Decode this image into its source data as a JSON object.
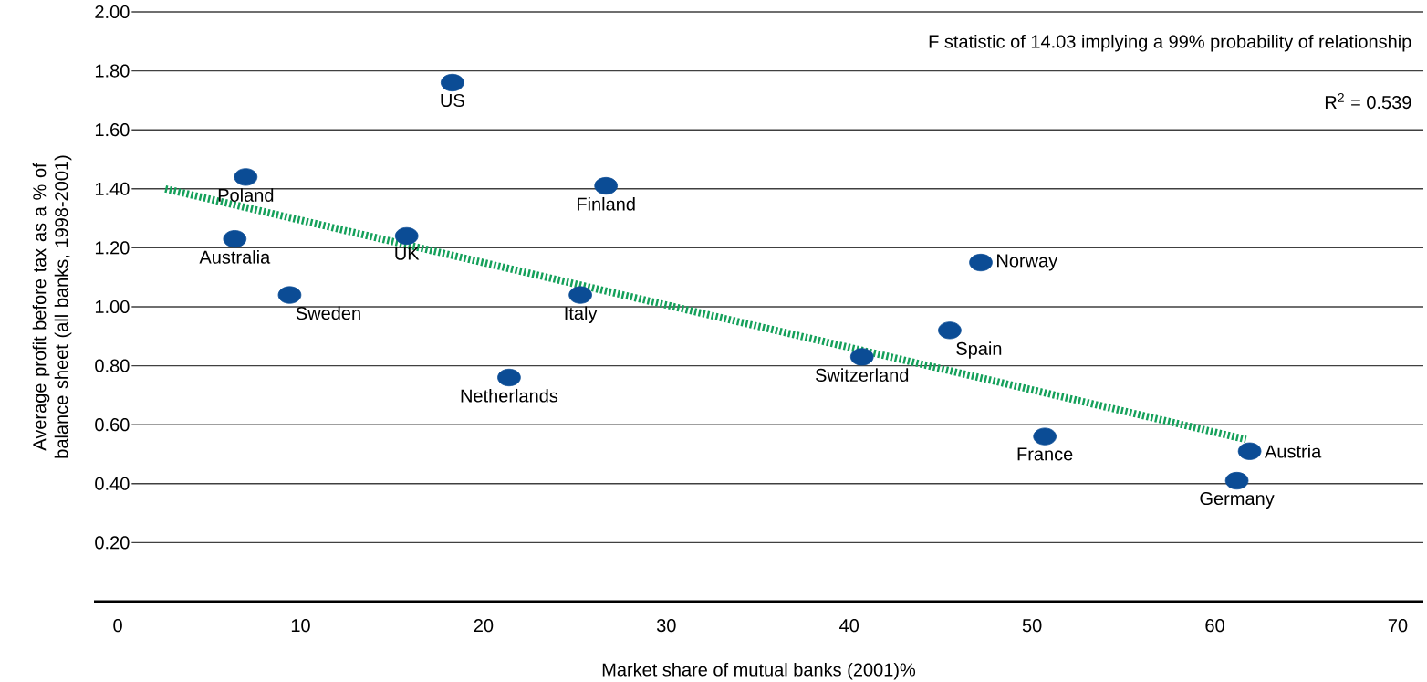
{
  "chart_data": {
    "type": "scatter",
    "xlabel": "Market share of mutual banks (2001)%",
    "ylabel": "Average profit before tax as a % of balance sheet (all banks, 1998-2001)",
    "xlim": [
      -1.3,
      71.4
    ],
    "ylim": [
      0,
      2.0
    ],
    "xticks": [
      0,
      10,
      20,
      30,
      40,
      50,
      60,
      70
    ],
    "yticks": [
      {
        "value": 0.2,
        "label": "0.20"
      },
      {
        "value": 0.4,
        "label": "0.40"
      },
      {
        "value": 0.6,
        "label": "0.60"
      },
      {
        "value": 0.8,
        "label": "0.80"
      },
      {
        "value": 1.0,
        "label": "1.00"
      },
      {
        "value": 1.2,
        "label": "1.20"
      },
      {
        "value": 1.4,
        "label": "1.40"
      },
      {
        "value": 1.6,
        "label": "1.60"
      },
      {
        "value": 1.8,
        "label": "1.80"
      },
      {
        "value": 2.0,
        "label": "2.00"
      }
    ],
    "grid": "y",
    "series": [
      {
        "color": "#0b4c95",
        "marker": "circle",
        "x": [
          18.3,
          7.0,
          26.7,
          6.4,
          15.8,
          47.2,
          9.4,
          25.3,
          45.5,
          40.7,
          21.4,
          50.7,
          61.9,
          61.2
        ],
        "values": [
          1.76,
          1.44,
          1.41,
          1.23,
          1.24,
          1.15,
          1.04,
          1.04,
          0.92,
          0.83,
          0.76,
          0.56,
          0.51,
          0.41
        ]
      },
      {
        "type": "line",
        "color": "#14a05a",
        "marker": "none",
        "line_style": "dotted",
        "x": [
          2.6,
          61.7
        ],
        "values": [
          1.4,
          0.55
        ]
      }
    ],
    "annotations": [
      "F statistic of 14.03 implying a 99% probability of relationship",
      "R$^{2}$ = 0.539",
      {
        "text": "US",
        "x": 18.3,
        "y": 1.76
      },
      {
        "text": "Poland",
        "x": 7.0,
        "y": 1.44
      },
      {
        "text": "Finland",
        "x": 26.7,
        "y": 1.41
      },
      {
        "text": "Australia",
        "x": 6.4,
        "y": 1.23
      },
      {
        "text": "UK",
        "x": 15.8,
        "y": 1.24
      },
      {
        "text": "Norway",
        "x": 47.2,
        "y": 1.15
      },
      {
        "text": "Sweden",
        "x": 9.4,
        "y": 1.04
      },
      {
        "text": "Italy",
        "x": 25.3,
        "y": 1.04
      },
      {
        "text": "Spain",
        "x": 45.5,
        "y": 0.92
      },
      {
        "text": "Switzerland",
        "x": 40.7,
        "y": 0.83
      },
      {
        "text": "Netherlands",
        "x": 21.4,
        "y": 0.76
      },
      {
        "text": "France",
        "x": 50.7,
        "y": 0.56
      },
      {
        "text": "Austria",
        "x": 61.9,
        "y": 0.51
      },
      {
        "text": "Germany",
        "x": 61.2,
        "y": 0.41
      }
    ]
  }
}
